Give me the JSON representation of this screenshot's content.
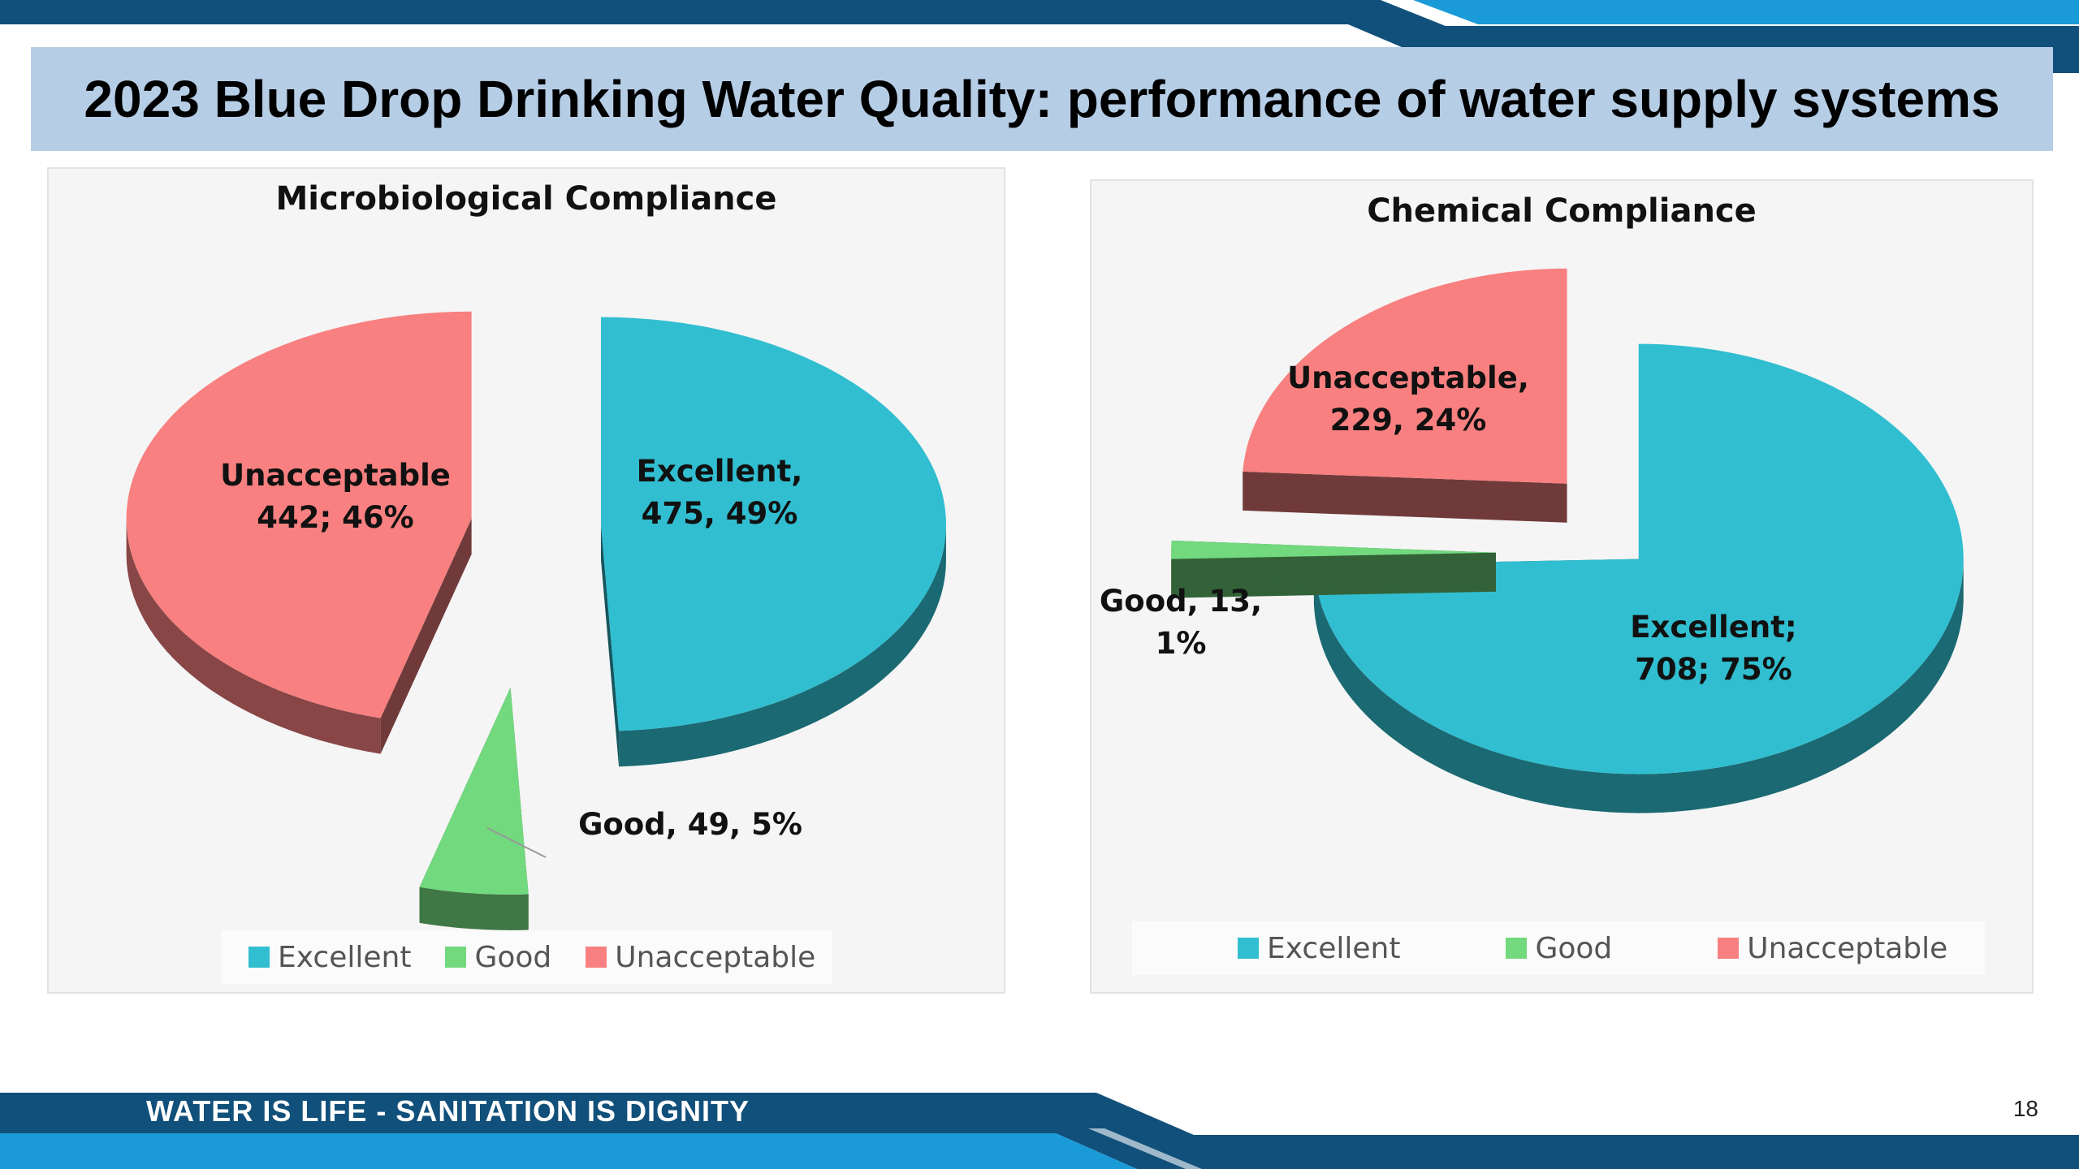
{
  "slide": {
    "title": "2023 Blue Drop Drinking Water Quality: performance of water supply systems",
    "footer": "WATER IS LIFE - SANITATION IS DIGNITY",
    "page_number": "18",
    "colors": {
      "navy": "#11507a",
      "bright_blue": "#1b9ad8",
      "title_bg": "#b6cde6"
    }
  },
  "legend": {
    "excellent": "Excellent",
    "good": "Good",
    "unacceptable": "Unacceptable"
  },
  "chart_data": [
    {
      "type": "pie",
      "style": "3d-exploded",
      "title": "Microbiological Compliance",
      "legend_position": "bottom",
      "slices": [
        {
          "name": "Excellent",
          "value": 475,
          "percent": 49,
          "color": "#31bed0",
          "label_line1": "Excellent,",
          "label_line2": "475, 49%"
        },
        {
          "name": "Good",
          "value": 49,
          "percent": 5,
          "color": "#72d97e",
          "label_line1": "Good, 49, 5%",
          "label_line2": ""
        },
        {
          "name": "Unacceptable",
          "value": 442,
          "percent": 46,
          "color": "#f88080",
          "label_line1": "Unacceptable",
          "label_line2": "442; 46%"
        }
      ]
    },
    {
      "type": "pie",
      "style": "3d-exploded",
      "title": "Chemical Compliance",
      "legend_position": "bottom",
      "slices": [
        {
          "name": "Excellent",
          "value": 708,
          "percent": 75,
          "color": "#31bed0",
          "label_line1": "Excellent;",
          "label_line2": "708; 75%"
        },
        {
          "name": "Good",
          "value": 13,
          "percent": 1,
          "color": "#72d97e",
          "label_line1": "Good, 13,",
          "label_line2": "1%"
        },
        {
          "name": "Unacceptable",
          "value": 229,
          "percent": 24,
          "color": "#f88080",
          "label_line1": "Unacceptable,",
          "label_line2": "229, 24%"
        }
      ]
    }
  ]
}
